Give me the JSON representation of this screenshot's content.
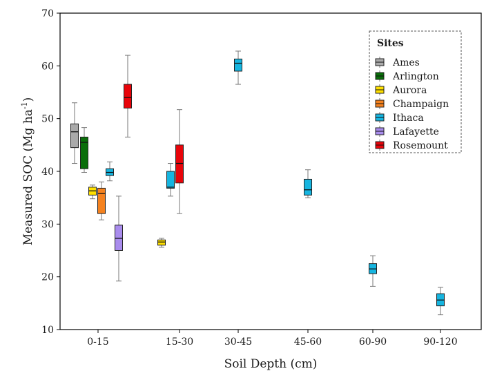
{
  "chart_data": {
    "type": "box",
    "xlabel": "Soil Depth (cm)",
    "ylabel": "Measured SOC (Mg ha",
    "ylabel_sup": "-1",
    "ylabel_tail": ")",
    "categories": [
      "0-15",
      "15-30",
      "30-45",
      "45-60",
      "60-90",
      "90-120"
    ],
    "ylim": [
      10,
      70
    ],
    "yticks": [
      10,
      20,
      30,
      40,
      50,
      60,
      70
    ],
    "legend": {
      "title": "Sites",
      "position": "top-right",
      "border": "dashed"
    },
    "series": [
      {
        "name": "Ames",
        "color": "#aaaaaa",
        "boxes": [
          {
            "category": "0-15",
            "whislo": 41.5,
            "q1": 44.5,
            "med": 47.5,
            "q3": 49,
            "whishi": 53
          }
        ]
      },
      {
        "name": "Arlington",
        "color": "#0a6e0a",
        "boxes": [
          {
            "category": "0-15",
            "whislo": 39.8,
            "q1": 40.5,
            "med": 45.5,
            "q3": 46.5,
            "whishi": 48.3
          }
        ]
      },
      {
        "name": "Aurora",
        "color": "#ffe000",
        "boxes": [
          {
            "category": "0-15",
            "whislo": 34.8,
            "q1": 35.5,
            "med": 36.3,
            "q3": 37,
            "whishi": 37.4
          },
          {
            "category": "15-30",
            "whislo": 25.6,
            "q1": 26,
            "med": 26.6,
            "q3": 27,
            "whishi": 27.3
          }
        ]
      },
      {
        "name": "Champaign",
        "color": "#f5821f",
        "boxes": [
          {
            "category": "0-15",
            "whislo": 30.8,
            "q1": 32,
            "med": 35.8,
            "q3": 36.8,
            "whishi": 38
          }
        ]
      },
      {
        "name": "Ithaca",
        "color": "#16b5e0",
        "boxes": [
          {
            "category": "0-15",
            "whislo": 38.2,
            "q1": 39.2,
            "med": 39.8,
            "q3": 40.5,
            "whishi": 41.8
          },
          {
            "category": "15-30",
            "whislo": 35.3,
            "q1": 36.8,
            "med": 37,
            "q3": 40,
            "whishi": 41.5
          },
          {
            "category": "30-45",
            "whislo": 56.5,
            "q1": 59,
            "med": 60.5,
            "q3": 61.3,
            "whishi": 62.8
          },
          {
            "category": "45-60",
            "whislo": 35,
            "q1": 35.5,
            "med": 36.5,
            "q3": 38.5,
            "whishi": 40.3
          },
          {
            "category": "60-90",
            "whislo": 18.2,
            "q1": 20.6,
            "med": 21.5,
            "q3": 22.5,
            "whishi": 24
          },
          {
            "category": "90-120",
            "whislo": 12.8,
            "q1": 14.5,
            "med": 15.6,
            "q3": 16.8,
            "whishi": 18
          }
        ]
      },
      {
        "name": "Lafayette",
        "color": "#a98ced",
        "boxes": [
          {
            "category": "0-15",
            "whislo": 19.2,
            "q1": 25,
            "med": 27.3,
            "q3": 29.8,
            "whishi": 35.3
          }
        ]
      },
      {
        "name": "Rosemount",
        "color": "#e8040a",
        "boxes": [
          {
            "category": "0-15",
            "whislo": 46.5,
            "q1": 52,
            "med": 54,
            "q3": 56.5,
            "whishi": 62
          },
          {
            "category": "15-30",
            "whislo": 32,
            "q1": 37.8,
            "med": 41.5,
            "q3": 45,
            "whishi": 51.7
          }
        ]
      }
    ]
  }
}
